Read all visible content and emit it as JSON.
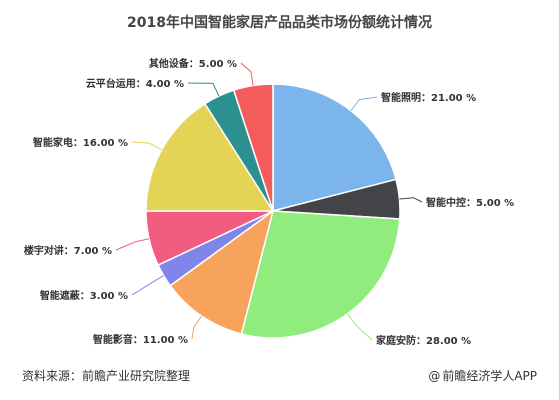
{
  "chart_data": {
    "type": "pie",
    "title": "2018年中国智能家居产品品类市场份额统计情况",
    "slices": [
      {
        "label": "智能照明",
        "value": 21.0,
        "value_label": "21.00 %",
        "color": "#7cb5ec"
      },
      {
        "label": "智能中控",
        "value": 5.0,
        "value_label": "5.00 %",
        "color": "#434348"
      },
      {
        "label": "家庭安防",
        "value": 28.0,
        "value_label": "28.00 %",
        "color": "#90ed7d"
      },
      {
        "label": "智能影音",
        "value": 11.0,
        "value_label": "11.00 %",
        "color": "#f7a35c"
      },
      {
        "label": "智能遮蔽",
        "value": 3.0,
        "value_label": "3.00 %",
        "color": "#8085e9"
      },
      {
        "label": "楼宇对讲",
        "value": 7.0,
        "value_label": "7.00 %",
        "color": "#f15c80"
      },
      {
        "label": "智能家电",
        "value": 16.0,
        "value_label": "16.00 %",
        "color": "#e4d354"
      },
      {
        "label": "云平台运用",
        "value": 4.0,
        "value_label": "4.00 %",
        "color": "#2b908f"
      },
      {
        "label": "其他设备",
        "value": 5.0,
        "value_label": "5.00 %",
        "color": "#f45b5b"
      }
    ]
  },
  "footer": {
    "source": "资料来源：前瞻产业研究院整理",
    "credit_icon": "at-icon",
    "credit_symbol": "@",
    "credit": "前瞻经济学人APP"
  }
}
